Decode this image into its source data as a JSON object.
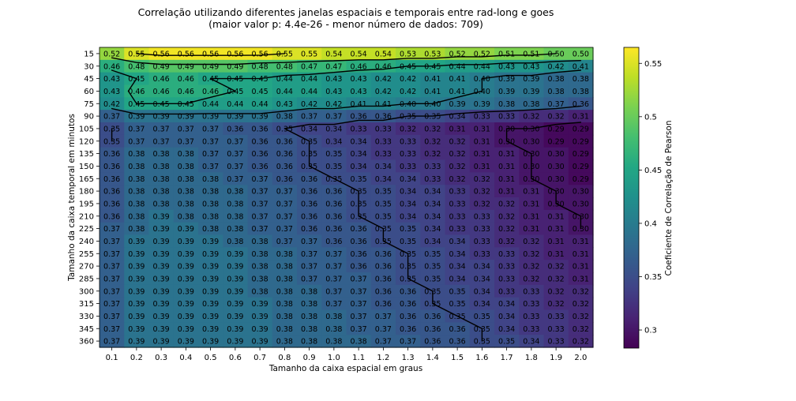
{
  "chart_data": {
    "type": "heatmap",
    "title": "Correlação utilizando diferentes janelas espaciais e temporais entre rad-long e goes",
    "subtitle": "(maior valor p: 4.4e-26 - menor número de dados: 709)",
    "xlabel": "Tamanho da caixa espacial em graus",
    "ylabel": "Tamanho da caixa temporal em minutos",
    "x": [
      "0.1",
      "0.2",
      "0.3",
      "0.4",
      "0.5",
      "0.6",
      "0.7",
      "0.8",
      "0.9",
      "1.0",
      "1.1",
      "1.2",
      "1.3",
      "1.4",
      "1.5",
      "1.6",
      "1.7",
      "1.8",
      "1.9",
      "2.0"
    ],
    "y": [
      "15",
      "30",
      "45",
      "60",
      "75",
      "90",
      "105",
      "120",
      "135",
      "150",
      "165",
      "180",
      "195",
      "210",
      "225",
      "240",
      "255",
      "270",
      "285",
      "300",
      "315",
      "330",
      "345",
      "360"
    ],
    "values": [
      [
        0.52,
        0.55,
        0.56,
        0.56,
        0.56,
        0.56,
        0.56,
        0.55,
        0.55,
        0.54,
        0.54,
        0.54,
        0.53,
        0.53,
        0.52,
        0.52,
        0.51,
        0.51,
        0.5,
        0.5
      ],
      [
        0.46,
        0.48,
        0.49,
        0.49,
        0.49,
        0.49,
        0.48,
        0.48,
        0.47,
        0.47,
        0.46,
        0.46,
        0.45,
        0.45,
        0.44,
        0.44,
        0.43,
        0.43,
        0.42,
        0.41
      ],
      [
        0.43,
        0.45,
        0.46,
        0.46,
        0.45,
        0.45,
        0.45,
        0.44,
        0.44,
        0.43,
        0.43,
        0.42,
        0.42,
        0.41,
        0.41,
        0.4,
        0.39,
        0.39,
        0.38,
        0.38
      ],
      [
        0.43,
        0.46,
        0.46,
        0.46,
        0.46,
        0.45,
        0.45,
        0.44,
        0.44,
        0.43,
        0.43,
        0.42,
        0.42,
        0.41,
        0.41,
        0.4,
        0.39,
        0.39,
        0.38,
        0.38
      ],
      [
        0.42,
        0.45,
        0.45,
        0.45,
        0.44,
        0.44,
        0.44,
        0.43,
        0.42,
        0.42,
        0.41,
        0.41,
        0.4,
        0.4,
        0.39,
        0.39,
        0.38,
        0.38,
        0.37,
        0.36
      ],
      [
        0.37,
        0.39,
        0.39,
        0.39,
        0.39,
        0.39,
        0.39,
        0.38,
        0.37,
        0.37,
        0.36,
        0.36,
        0.35,
        0.35,
        0.34,
        0.33,
        0.33,
        0.32,
        0.32,
        0.31
      ],
      [
        0.35,
        0.37,
        0.37,
        0.37,
        0.37,
        0.36,
        0.36,
        0.35,
        0.34,
        0.34,
        0.33,
        0.33,
        0.32,
        0.32,
        0.31,
        0.31,
        0.3,
        0.3,
        0.29,
        0.29
      ],
      [
        0.35,
        0.37,
        0.37,
        0.37,
        0.37,
        0.37,
        0.36,
        0.36,
        0.35,
        0.34,
        0.34,
        0.33,
        0.33,
        0.32,
        0.32,
        0.31,
        0.3,
        0.3,
        0.29,
        0.29
      ],
      [
        0.36,
        0.38,
        0.38,
        0.38,
        0.37,
        0.37,
        0.36,
        0.36,
        0.35,
        0.35,
        0.34,
        0.33,
        0.33,
        0.32,
        0.32,
        0.31,
        0.31,
        0.3,
        0.3,
        0.29
      ],
      [
        0.36,
        0.38,
        0.38,
        0.38,
        0.37,
        0.37,
        0.36,
        0.36,
        0.35,
        0.35,
        0.34,
        0.34,
        0.33,
        0.33,
        0.32,
        0.31,
        0.31,
        0.3,
        0.3,
        0.29
      ],
      [
        0.36,
        0.38,
        0.38,
        0.38,
        0.38,
        0.37,
        0.37,
        0.36,
        0.36,
        0.35,
        0.35,
        0.34,
        0.34,
        0.33,
        0.32,
        0.32,
        0.31,
        0.3,
        0.3,
        0.29
      ],
      [
        0.36,
        0.38,
        0.38,
        0.38,
        0.38,
        0.38,
        0.37,
        0.37,
        0.36,
        0.36,
        0.35,
        0.35,
        0.34,
        0.34,
        0.33,
        0.32,
        0.31,
        0.31,
        0.3,
        0.3
      ],
      [
        0.36,
        0.38,
        0.38,
        0.38,
        0.38,
        0.38,
        0.37,
        0.37,
        0.36,
        0.36,
        0.35,
        0.35,
        0.34,
        0.34,
        0.33,
        0.32,
        0.32,
        0.31,
        0.3,
        0.3
      ],
      [
        0.36,
        0.38,
        0.39,
        0.38,
        0.38,
        0.38,
        0.37,
        0.37,
        0.36,
        0.36,
        0.35,
        0.35,
        0.34,
        0.34,
        0.33,
        0.33,
        0.32,
        0.31,
        0.31,
        0.3
      ],
      [
        0.37,
        0.38,
        0.39,
        0.39,
        0.38,
        0.38,
        0.37,
        0.37,
        0.36,
        0.36,
        0.36,
        0.35,
        0.35,
        0.34,
        0.33,
        0.33,
        0.32,
        0.31,
        0.31,
        0.3
      ],
      [
        0.37,
        0.39,
        0.39,
        0.39,
        0.39,
        0.38,
        0.38,
        0.37,
        0.37,
        0.36,
        0.36,
        0.35,
        0.35,
        0.34,
        0.34,
        0.33,
        0.32,
        0.32,
        0.31,
        0.31
      ],
      [
        0.37,
        0.39,
        0.39,
        0.39,
        0.39,
        0.39,
        0.38,
        0.38,
        0.37,
        0.37,
        0.36,
        0.36,
        0.35,
        0.35,
        0.34,
        0.33,
        0.33,
        0.32,
        0.31,
        0.31
      ],
      [
        0.37,
        0.39,
        0.39,
        0.39,
        0.39,
        0.39,
        0.38,
        0.38,
        0.37,
        0.37,
        0.36,
        0.36,
        0.35,
        0.35,
        0.34,
        0.34,
        0.33,
        0.32,
        0.32,
        0.31
      ],
      [
        0.37,
        0.39,
        0.39,
        0.39,
        0.39,
        0.39,
        0.38,
        0.38,
        0.37,
        0.37,
        0.37,
        0.36,
        0.35,
        0.35,
        0.34,
        0.34,
        0.33,
        0.32,
        0.32,
        0.31
      ],
      [
        0.37,
        0.39,
        0.39,
        0.39,
        0.39,
        0.39,
        0.38,
        0.38,
        0.38,
        0.37,
        0.37,
        0.36,
        0.36,
        0.35,
        0.35,
        0.34,
        0.33,
        0.33,
        0.32,
        0.32
      ],
      [
        0.37,
        0.39,
        0.39,
        0.39,
        0.39,
        0.39,
        0.39,
        0.38,
        0.38,
        0.37,
        0.37,
        0.36,
        0.36,
        0.35,
        0.35,
        0.34,
        0.34,
        0.33,
        0.32,
        0.32
      ],
      [
        0.37,
        0.39,
        0.39,
        0.39,
        0.39,
        0.39,
        0.39,
        0.38,
        0.38,
        0.38,
        0.37,
        0.37,
        0.36,
        0.36,
        0.35,
        0.35,
        0.34,
        0.33,
        0.33,
        0.32
      ],
      [
        0.37,
        0.39,
        0.39,
        0.39,
        0.39,
        0.39,
        0.39,
        0.38,
        0.38,
        0.38,
        0.37,
        0.37,
        0.36,
        0.36,
        0.36,
        0.35,
        0.34,
        0.33,
        0.33,
        0.32
      ],
      [
        0.37,
        0.39,
        0.39,
        0.39,
        0.39,
        0.39,
        0.39,
        0.38,
        0.38,
        0.38,
        0.38,
        0.37,
        0.37,
        0.36,
        0.36,
        0.35,
        0.35,
        0.34,
        0.33,
        0.32
      ]
    ],
    "vmin": 0.283,
    "vmax": 0.565,
    "colormap": "viridis",
    "colorbar": {
      "label": "Coeficiente de Correlação de Pearson",
      "ticks": [
        0.3,
        0.35,
        0.4,
        0.45,
        0.5,
        0.55
      ],
      "tick_labels": [
        "0.3",
        "0.35",
        "0.4",
        "0.45",
        "0.5",
        "0.55"
      ]
    },
    "contours": true,
    "annotations": "cell values printed in each cell"
  }
}
